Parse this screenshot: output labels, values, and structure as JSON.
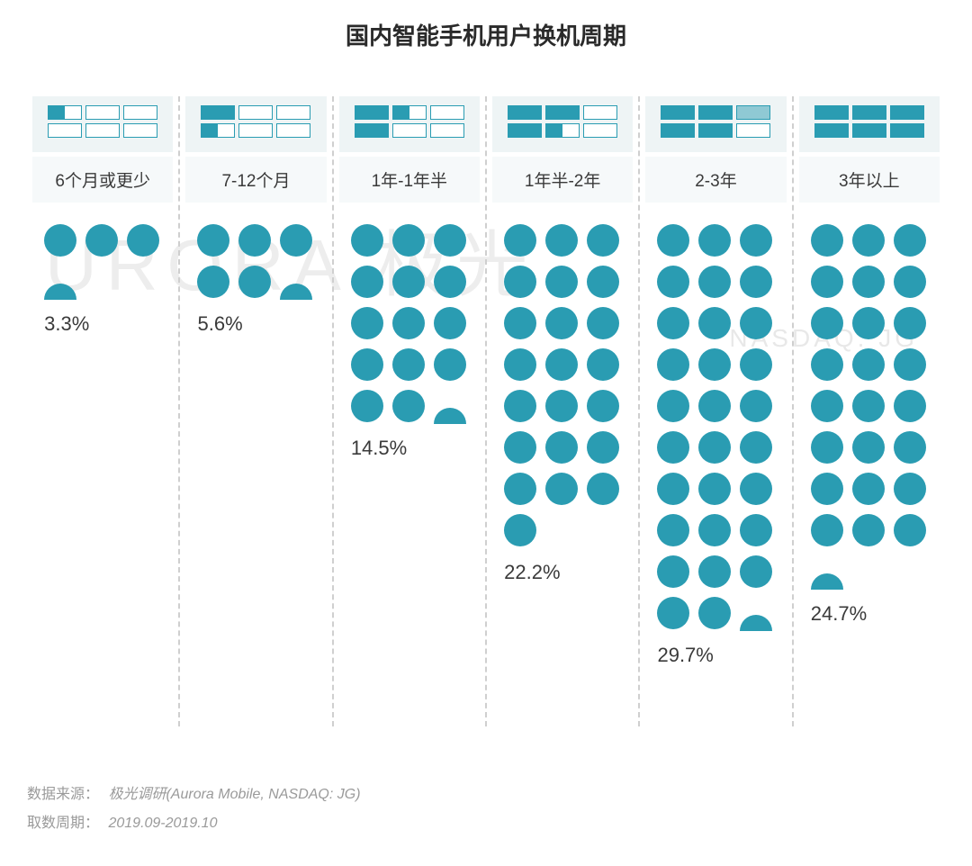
{
  "title": "国内智能手机用户换机周期",
  "watermark_main": "URORA 极光",
  "watermark_sub": "NASDAQ: JG",
  "dot_color": "#2a9cb2",
  "header_bg": "#eef4f5",
  "label_bg": "#f6f9fa",
  "divider_color": "#cfcfcf",
  "text_color": "#3a3a3a",
  "chart": {
    "type": "pictogram-dot",
    "dots_per_row": 3,
    "categories": [
      {
        "label": "6个月或更少",
        "percent": "3.3%",
        "full_dots": 3,
        "half_dot": true,
        "bar_fill": [
          "h",
          "e",
          "e",
          "e",
          "e",
          "e"
        ]
      },
      {
        "label": "7-12个月",
        "percent": "5.6%",
        "full_dots": 5,
        "half_dot": true,
        "bar_fill": [
          "f",
          "e",
          "e",
          "h",
          "e",
          "e"
        ]
      },
      {
        "label": "1年-1年半",
        "percent": "14.5%",
        "full_dots": 14,
        "half_dot": true,
        "bar_fill": [
          "f",
          "h",
          "e",
          "f",
          "e",
          "e"
        ]
      },
      {
        "label": "1年半-2年",
        "percent": "22.2%",
        "full_dots": 22,
        "half_dot": false,
        "bar_fill": [
          "f",
          "f",
          "e",
          "f",
          "h",
          "e"
        ]
      },
      {
        "label": "2-3年",
        "percent": "29.7%",
        "full_dots": 29,
        "half_dot": true,
        "bar_fill": [
          "f",
          "f",
          "l",
          "f",
          "f",
          "e"
        ]
      },
      {
        "label": "3年以上",
        "percent": "24.7%",
        "full_dots": 24,
        "half_dot": true,
        "bar_fill": [
          "f",
          "f",
          "f",
          "f",
          "f",
          "f"
        ]
      }
    ]
  },
  "footer": {
    "source_label": "数据来源：",
    "source_value": "极光调研(Aurora Mobile, NASDAQ: JG)",
    "period_label": "取数周期：",
    "period_value": "2019.09-2019.10"
  }
}
